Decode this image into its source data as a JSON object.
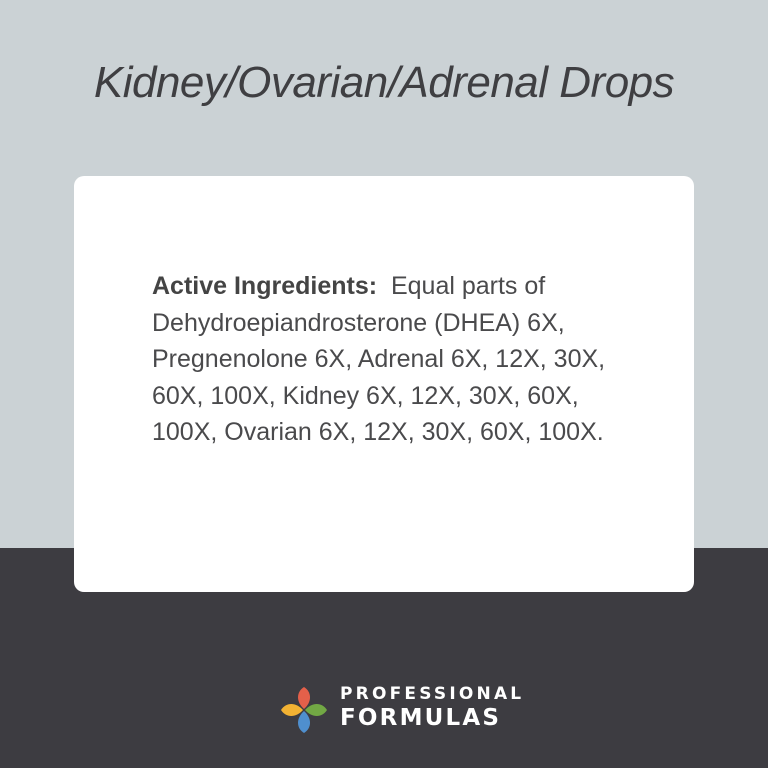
{
  "title": "Kidney/Ovarian/Adrenal Drops",
  "ingredients": {
    "label": "Active Ingredients:",
    "text": "Equal parts of Dehydroepiandrosterone (DHEA) 6X, Pregnenolone 6X, Adrenal 6X, 12X, 30X, 60X, 100X, Kidney 6X, 12X, 30X, 60X, 100X, Ovarian 6X, 12X, 30X, 60X, 100X."
  },
  "brand": {
    "line1": "PROFESSIONAL",
    "line2": "FORMULAS"
  },
  "colors": {
    "top_bg": "#cbd2d5",
    "bottom_bg": "#3d3c41",
    "petal_red": "#e4604a",
    "petal_yellow": "#f2b233",
    "petal_green": "#72a844",
    "petal_blue": "#4f8fce"
  }
}
